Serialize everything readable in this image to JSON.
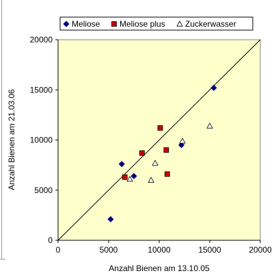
{
  "chart_data": {
    "type": "scatter",
    "title": "",
    "xlabel": "Anzahl Bienen am 13.10.05",
    "ylabel": "Anzahl Bienen am 21.03.06",
    "xlim": [
      0,
      20000
    ],
    "ylim": [
      0,
      20000
    ],
    "xticks": [
      0,
      5000,
      10000,
      15000,
      20000
    ],
    "yticks": [
      0,
      5000,
      10000,
      15000,
      20000
    ],
    "xtick_labels": [
      "0",
      "5000",
      "10000",
      "15000",
      "20000"
    ],
    "ytick_labels": [
      "0",
      "5000",
      "10000",
      "15000",
      "20000"
    ],
    "grid": false,
    "plot_background": "#ffffcc",
    "legend_position": "top",
    "reference_line": {
      "type": "identity",
      "from": [
        0,
        0
      ],
      "to": [
        20000,
        20000
      ]
    },
    "series": [
      {
        "name": "Meliose",
        "marker": "diamond",
        "color": "#000080",
        "points": [
          {
            "x": 5200,
            "y": 2100
          },
          {
            "x": 6300,
            "y": 7600
          },
          {
            "x": 7500,
            "y": 6400
          },
          {
            "x": 12200,
            "y": 9500
          },
          {
            "x": 15400,
            "y": 15200
          }
        ]
      },
      {
        "name": "Meliose plus",
        "marker": "square",
        "color": "#cc0000",
        "points": [
          {
            "x": 6600,
            "y": 6300
          },
          {
            "x": 8300,
            "y": 8700
          },
          {
            "x": 10100,
            "y": 11200
          },
          {
            "x": 10700,
            "y": 9000
          },
          {
            "x": 10800,
            "y": 6600
          }
        ]
      },
      {
        "name": "Zuckerwasser",
        "marker": "triangle",
        "color": "#ffffff",
        "points": [
          {
            "x": 7100,
            "y": 6100
          },
          {
            "x": 9200,
            "y": 6000
          },
          {
            "x": 9600,
            "y": 7700
          },
          {
            "x": 12300,
            "y": 9900
          },
          {
            "x": 15000,
            "y": 11400
          }
        ]
      }
    ]
  }
}
